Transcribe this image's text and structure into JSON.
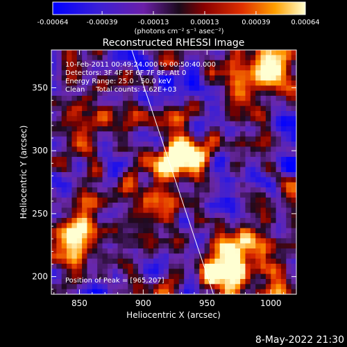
{
  "chart_data": {
    "type": "heatmap",
    "title": "Reconstructed RHESSI Image",
    "xlabel": "Heliocentric X (arcsec)",
    "ylabel": "Heliocentric Y (arcsec)",
    "xlim": [
      828,
      1020
    ],
    "ylim": [
      186,
      380
    ],
    "xticks": [
      850,
      900,
      950,
      1000
    ],
    "yticks": [
      200,
      250,
      300,
      350
    ],
    "colorbar": {
      "ticks": [
        "-0.00064",
        "-0.00039",
        "-0.00013",
        "0.00013",
        "0.00039",
        "0.00064"
      ],
      "tick_values": [
        -0.00064,
        -0.00039,
        -0.00013,
        0.00013,
        0.00039,
        0.00064
      ],
      "range": [
        -0.00064,
        0.00064
      ],
      "unit_label": "(photons cm⁻² s⁻¹ asec⁻²)"
    },
    "annotations": [
      "10-Feb-2011 00:49:24.000 to 00:50:40.000",
      "Detectors: 3F 4F 5F 6F 7F 8F, Att 0",
      "Energy Range: 25.0 - 50.0 keV",
      "Clean     Total counts: 1.62E+03"
    ],
    "peak_label": "Position of Peak = [965,207]",
    "peak_position": [
      965,
      207
    ],
    "limb_line": {
      "x": [
        891,
        955
      ],
      "y": [
        380,
        186
      ]
    },
    "bright_sources": [
      {
        "x": 932,
        "y": 295,
        "value": 0.00058
      },
      {
        "x": 963,
        "y": 205,
        "value": 0.00064
      },
      {
        "x": 845,
        "y": 228,
        "value": 0.00055
      },
      {
        "x": 1000,
        "y": 362,
        "value": 0.00052
      },
      {
        "x": 870,
        "y": 318,
        "value": 0.0003
      },
      {
        "x": 985,
        "y": 232,
        "value": 0.00028
      },
      {
        "x": 915,
        "y": 258,
        "value": 0.00025
      }
    ]
  },
  "footer": {
    "timestamp": "8-May-2022 21:30"
  }
}
